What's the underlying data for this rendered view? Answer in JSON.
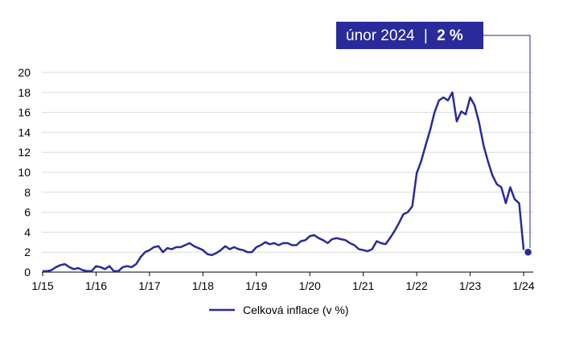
{
  "callout": {
    "date": "únor 2024",
    "separator": "|",
    "value": "2 %"
  },
  "legend": {
    "label": "Celková inflace (v %)"
  },
  "colors": {
    "line": "#2a2a9a",
    "callout_bg": "#2a2a9a",
    "callout_text": "#ffffff",
    "grid": "#dcdcdc",
    "axis": "#000000"
  },
  "chart_data": {
    "type": "line",
    "ylim": [
      0,
      20
    ],
    "yticks": [
      0,
      2,
      4,
      6,
      8,
      10,
      12,
      14,
      16,
      18,
      20
    ],
    "xticks": [
      "1/15",
      "1/16",
      "1/17",
      "1/18",
      "1/19",
      "1/20",
      "1/21",
      "1/22",
      "1/23",
      "1/24"
    ],
    "grid": true,
    "legend_position": "bottom",
    "series": [
      {
        "name": "Celková inflace (v %)",
        "start": "2015-01",
        "values": [
          0.1,
          0.1,
          0.2,
          0.5,
          0.7,
          0.8,
          0.5,
          0.3,
          0.4,
          0.2,
          0.1,
          0.1,
          0.6,
          0.5,
          0.3,
          0.6,
          0.1,
          0.1,
          0.5,
          0.6,
          0.5,
          0.8,
          1.5,
          2.0,
          2.2,
          2.5,
          2.6,
          2.0,
          2.4,
          2.3,
          2.5,
          2.5,
          2.7,
          2.9,
          2.6,
          2.4,
          2.2,
          1.8,
          1.7,
          1.9,
          2.2,
          2.6,
          2.3,
          2.5,
          2.3,
          2.2,
          2.0,
          2.0,
          2.5,
          2.7,
          3.0,
          2.8,
          2.9,
          2.7,
          2.9,
          2.9,
          2.7,
          2.7,
          3.1,
          3.2,
          3.6,
          3.7,
          3.4,
          3.2,
          2.9,
          3.3,
          3.4,
          3.3,
          3.2,
          2.9,
          2.7,
          2.3,
          2.2,
          2.1,
          2.3,
          3.1,
          2.9,
          2.8,
          3.4,
          4.1,
          4.9,
          5.8,
          6.0,
          6.6,
          9.9,
          11.1,
          12.7,
          14.2,
          16.0,
          17.2,
          17.5,
          17.2,
          18.0,
          15.1,
          16.1,
          15.8,
          17.5,
          16.7,
          15.0,
          12.7,
          11.1,
          9.7,
          8.8,
          8.5,
          6.9,
          8.5,
          7.3,
          6.9,
          2.3,
          2.0
        ]
      }
    ],
    "highlight": {
      "label": "únor 2024",
      "value": 2.0
    }
  }
}
